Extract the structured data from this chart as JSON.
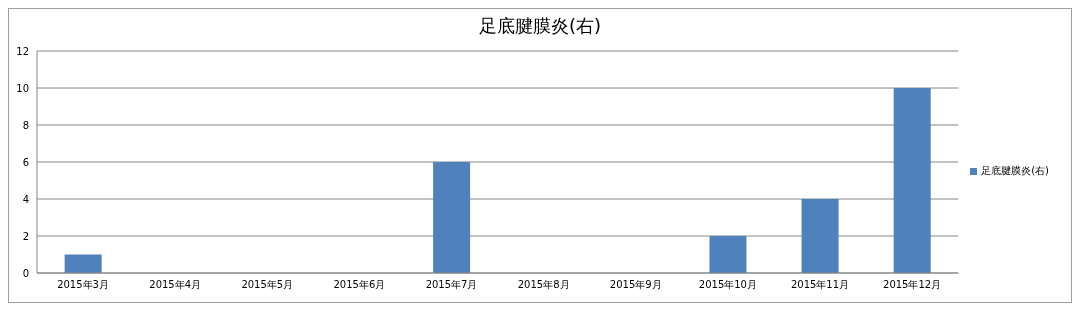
{
  "chart_data": {
    "type": "bar",
    "title": "足底腱膜炎(右)",
    "categories": [
      "2015年3月",
      "2015年4月",
      "2015年5月",
      "2015年6月",
      "2015年7月",
      "2015年8月",
      "2015年9月",
      "2015年10月",
      "2015年11月",
      "2015年12月"
    ],
    "series": [
      {
        "name": "足底腱膜炎(右)",
        "color": "#4f81bd",
        "values": [
          1,
          0,
          0,
          0,
          6,
          0,
          0,
          2,
          4,
          10
        ]
      }
    ],
    "ylim": [
      0,
      12
    ],
    "yticks": [
      0,
      2,
      4,
      6,
      8,
      10,
      12
    ],
    "grid": "y",
    "legend": "right"
  }
}
